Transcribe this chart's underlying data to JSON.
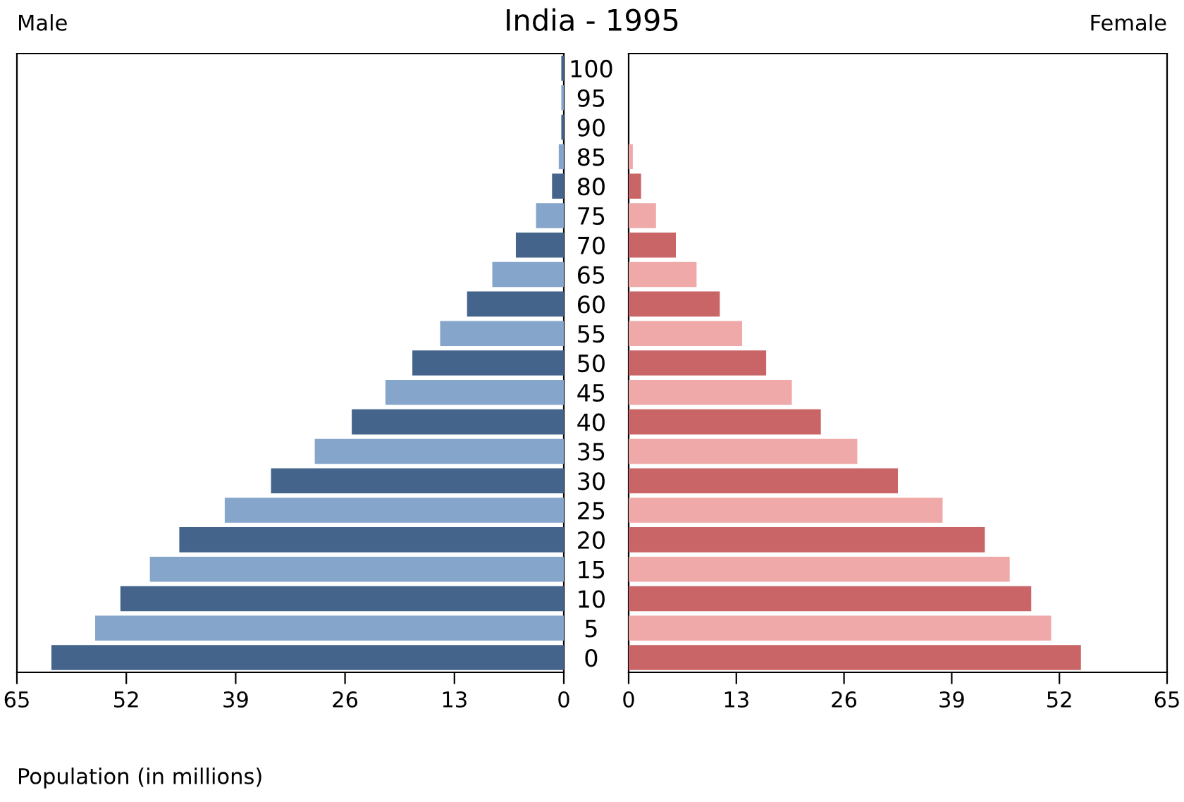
{
  "chart_data": [
    {
      "type": "bar",
      "orientation": "horizontal",
      "title": "India - 1995",
      "subtitle": "Male",
      "xlabel": "Population (in millions)",
      "categories": [
        "100",
        "95",
        "90",
        "85",
        "80",
        "75",
        "70",
        "65",
        "60",
        "55",
        "50",
        "45",
        "40",
        "35",
        "30",
        "25",
        "20",
        "15",
        "10",
        "5",
        "0"
      ],
      "values": [
        0.3,
        0.3,
        0.3,
        0.6,
        1.4,
        3.3,
        5.7,
        8.5,
        11.5,
        14.7,
        18.0,
        21.2,
        25.2,
        29.6,
        34.8,
        40.3,
        45.7,
        49.2,
        52.7,
        55.7,
        60.9
      ],
      "colors": [
        "#44648c",
        "#86a5cb",
        "#44648c",
        "#86a5cb",
        "#44648c",
        "#86a5cb",
        "#44648c",
        "#86a5cb",
        "#44648c",
        "#86a5cb",
        "#44648c",
        "#86a5cb",
        "#44648c",
        "#86a5cb",
        "#44648c",
        "#86a5cb",
        "#44648c",
        "#86a5cb",
        "#44648c",
        "#86a5cb",
        "#44648c"
      ],
      "xlim": [
        65,
        0
      ],
      "xticks": [
        65,
        52,
        39,
        26,
        13,
        0
      ],
      "grid": false,
      "legend": false
    },
    {
      "type": "bar",
      "orientation": "horizontal",
      "subtitle": "Female",
      "categories": [
        "100",
        "95",
        "90",
        "85",
        "80",
        "75",
        "70",
        "65",
        "60",
        "55",
        "50",
        "45",
        "40",
        "35",
        "30",
        "25",
        "20",
        "15",
        "10",
        "5",
        "0"
      ],
      "values": [
        null,
        null,
        null,
        0.5,
        1.5,
        3.3,
        5.7,
        8.2,
        11.0,
        13.7,
        16.6,
        19.7,
        23.2,
        27.6,
        32.5,
        37.9,
        43.0,
        46.0,
        48.6,
        51.0,
        54.6
      ],
      "colors": [
        "#c96566",
        "#eea9a8",
        "#c96566",
        "#eea9a8",
        "#c96566",
        "#eea9a8",
        "#c96566",
        "#eea9a8",
        "#c96566",
        "#eea9a8",
        "#c96566",
        "#eea9a8",
        "#c96566",
        "#eea9a8",
        "#c96566",
        "#eea9a8",
        "#c96566",
        "#eea9a8",
        "#c96566",
        "#eea9a8",
        "#c96566"
      ],
      "xlim": [
        0,
        65
      ],
      "xticks": [
        0,
        13,
        26,
        39,
        52,
        65
      ],
      "grid": false,
      "legend": false,
      "tick_labels": "x"
    }
  ]
}
